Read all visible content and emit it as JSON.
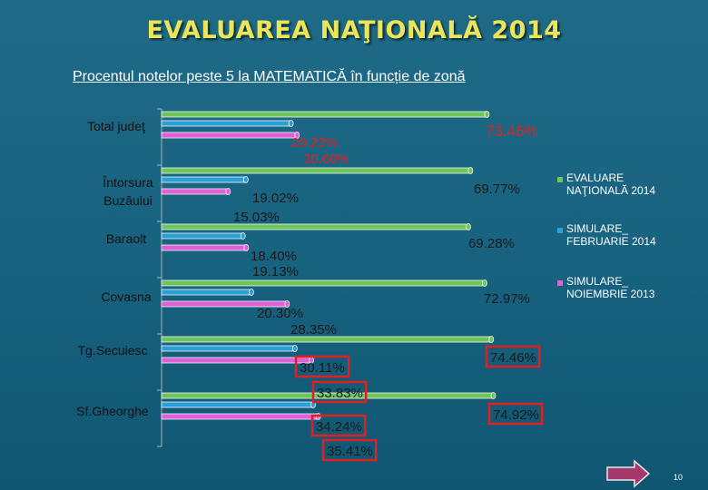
{
  "slide": {
    "title": "EVALUAREA NAŢIONALĂ 2014",
    "subtitle": "Procentul  notelor  peste 5 la MATEMATICĂ  în funcție de zonă",
    "page_number": "10"
  },
  "colors": {
    "evaluare": "#6ec65a",
    "februarie": "#2aa0d8",
    "noiembrie": "#e060d8",
    "highlight": "#e02020",
    "value_text": "#1a1a1a",
    "red_text": "#e02020"
  },
  "chart_data": {
    "type": "bar",
    "orientation": "horizontal",
    "title": "Procentul  notelor  peste 5 la MATEMATICĂ  în funcție de zonă",
    "categories": [
      "Total judeţ",
      "Întorsura Buzăului",
      "Baraolt",
      "Covasna",
      "Tg.Secuiesc",
      "Sf.Gheorghe"
    ],
    "series": [
      {
        "name": "EVALUARE NAŢIONALĂ 2014",
        "values": [
          73.46,
          69.77,
          69.28,
          72.97,
          74.46,
          74.92
        ],
        "labels": [
          "73.46%",
          "69.77%",
          "69.28%",
          "72.97%",
          "74.46%",
          "74.92%"
        ]
      },
      {
        "name": "SIMULARE_ FEBRUARIE 2014",
        "values": [
          29.23,
          19.02,
          18.4,
          20.3,
          30.11,
          34.24
        ],
        "labels": [
          "29.23%",
          "19.02%",
          "18.40%",
          "20.30%",
          "30.11%",
          "34.24%"
        ]
      },
      {
        "name": "SIMULARE_ NOIEMBRIE 2013",
        "values": [
          30.6,
          15.03,
          19.13,
          28.35,
          33.83,
          35.41
        ],
        "labels": [
          "30.60%",
          "15.03%",
          "19.13%",
          "28.35%",
          "33.83%",
          "35.41%"
        ]
      }
    ],
    "legend": [
      "EVALUARE NAŢIONALĂ 2014",
      "SIMULARE_ FEBRUARIE 2014",
      "SIMULARE_ NOIEMBRIE 2013"
    ],
    "legend_position": "right",
    "xlim": [
      0,
      100
    ],
    "grid": false,
    "highlighted_categories": [
      "Total judeţ",
      "Tg.Secuiesc",
      "Sf.Gheorghe"
    ]
  }
}
